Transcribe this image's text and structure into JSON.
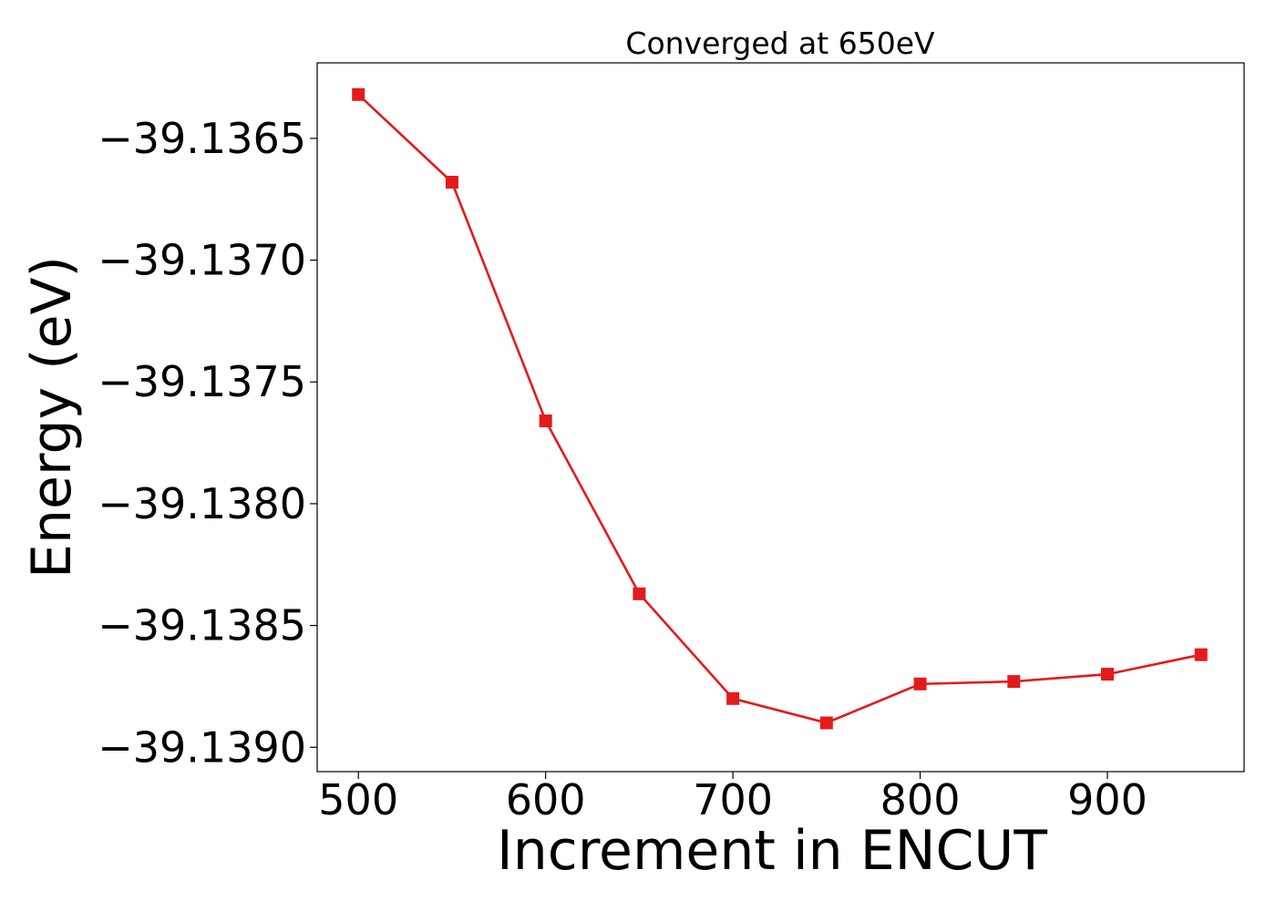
{
  "chart_data": {
    "type": "line",
    "title": "Converged at 650eV",
    "xlabel": "Increment in ENCUT",
    "ylabel": "Energy (eV)",
    "x": [
      500,
      550,
      600,
      650,
      700,
      750,
      800,
      850,
      900,
      950
    ],
    "series": [
      {
        "values": [
          -39.13632,
          -39.13668,
          -39.13766,
          -39.13837,
          -39.1388,
          -39.1389,
          -39.13874,
          -39.13873,
          -39.1387,
          -39.13862
        ],
        "color": "#e41a1c",
        "marker": "square"
      }
    ],
    "xlim": [
      478,
      973
    ],
    "ylim": [
      -39.1391,
      -39.13619
    ],
    "xticks": [
      500,
      600,
      700,
      800,
      900
    ],
    "xtick_labels": [
      "500",
      "600",
      "700",
      "800",
      "900"
    ],
    "yticks": [
      -39.1365,
      -39.137,
      -39.1375,
      -39.138,
      -39.1385,
      -39.139
    ],
    "ytick_labels": [
      "−39.1365",
      "−39.1370",
      "−39.1375",
      "−39.1380",
      "−39.1385",
      "−39.1390"
    ],
    "grid": false,
    "legend": "none"
  }
}
